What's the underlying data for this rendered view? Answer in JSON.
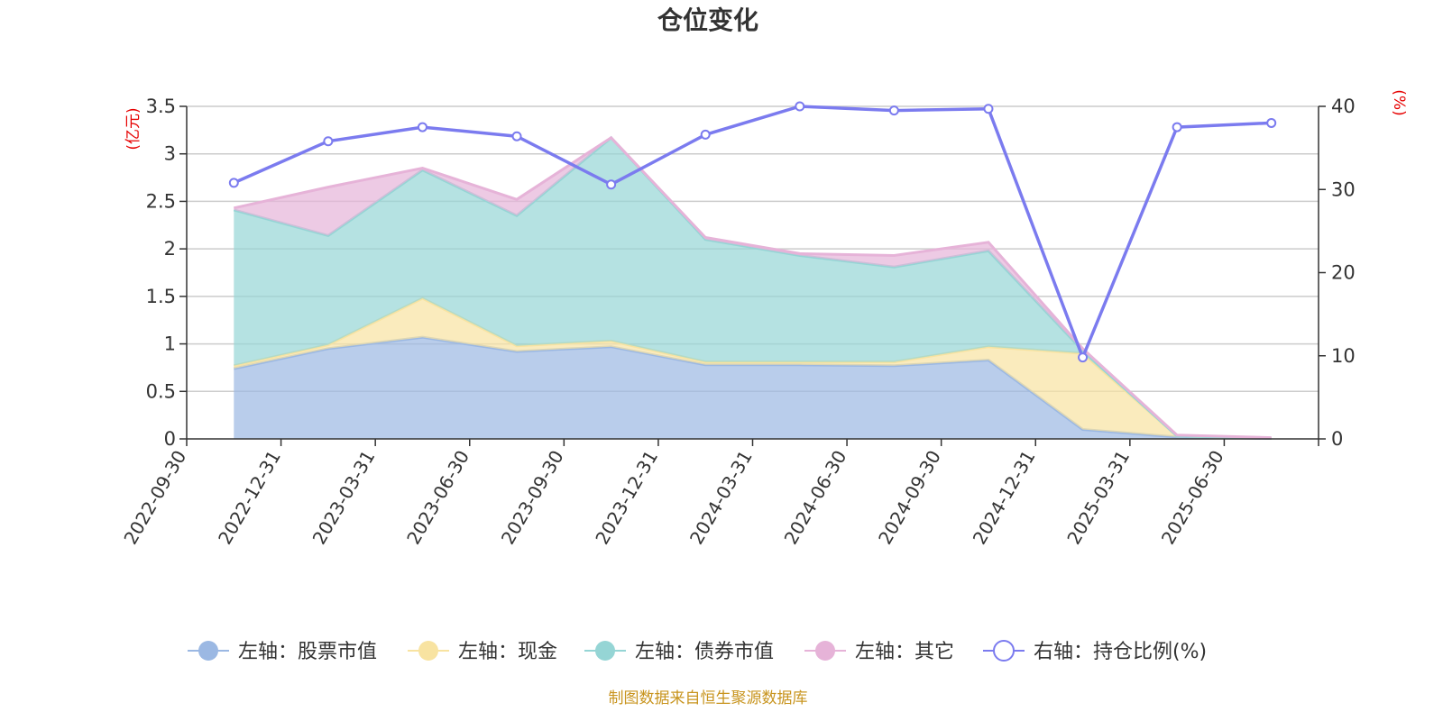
{
  "chart_data": {
    "type": "area",
    "title": "仓位变化",
    "categories": [
      "2022-09-30",
      "2022-12-31",
      "2023-03-31",
      "2023-06-30",
      "2023-09-30",
      "2023-12-31",
      "2024-03-31",
      "2024-06-30",
      "2024-09-30",
      "2024-12-31",
      "2025-03-31",
      "2025-06-30"
    ],
    "left_axis": {
      "unit": "(亿元)",
      "ylim": [
        0,
        3.5
      ],
      "ticks": [
        "0",
        "0.5",
        "1",
        "1.5",
        "2",
        "2.5",
        "3",
        "3.5"
      ]
    },
    "right_axis": {
      "unit": "(%)",
      "ylim": [
        0,
        40
      ],
      "ticks": [
        "0",
        "10",
        "20",
        "30",
        "40"
      ]
    },
    "stacked": true,
    "series": [
      {
        "name": "左轴：股票市值",
        "axis": "left",
        "color": "#9bb8e3",
        "values": [
          0.74,
          0.95,
          1.07,
          0.92,
          0.97,
          0.78,
          0.78,
          0.77,
          0.83,
          0.1,
          0.02,
          0.005
        ]
      },
      {
        "name": "左轴：现金",
        "axis": "left",
        "color": "#f8e3a1",
        "values": [
          0.03,
          0.04,
          0.41,
          0.06,
          0.06,
          0.03,
          0.03,
          0.04,
          0.14,
          0.8,
          0.01,
          0.003
        ]
      },
      {
        "name": "左轴：债券市值",
        "axis": "left",
        "color": "#95d5d5",
        "values": [
          1.64,
          1.15,
          1.35,
          1.37,
          2.14,
          1.29,
          1.12,
          1.0,
          1.01,
          0.03,
          0.0,
          0.0
        ]
      },
      {
        "name": "左轴：其它",
        "axis": "left",
        "color": "#e6b3d8",
        "values": [
          0.02,
          0.51,
          0.02,
          0.17,
          0.0,
          0.02,
          0.02,
          0.12,
          0.09,
          0.02,
          0.01,
          0.005
        ]
      },
      {
        "name": "右轴：持仓比例(%)",
        "axis": "right",
        "type": "line",
        "color": "#7b7bef",
        "values": [
          30.8,
          35.8,
          37.5,
          36.4,
          30.6,
          36.6,
          40.0,
          39.5,
          39.7,
          9.8,
          37.5,
          38.0
        ]
      }
    ],
    "grid": true,
    "legend_position": "bottom"
  },
  "footer": {
    "source": "制图数据来自恒生聚源数据库"
  },
  "colors": {
    "title": "#333333",
    "axis_unit": "#e60000",
    "source": "#c8941e",
    "grid": "#cccccc",
    "axis": "#333333"
  }
}
